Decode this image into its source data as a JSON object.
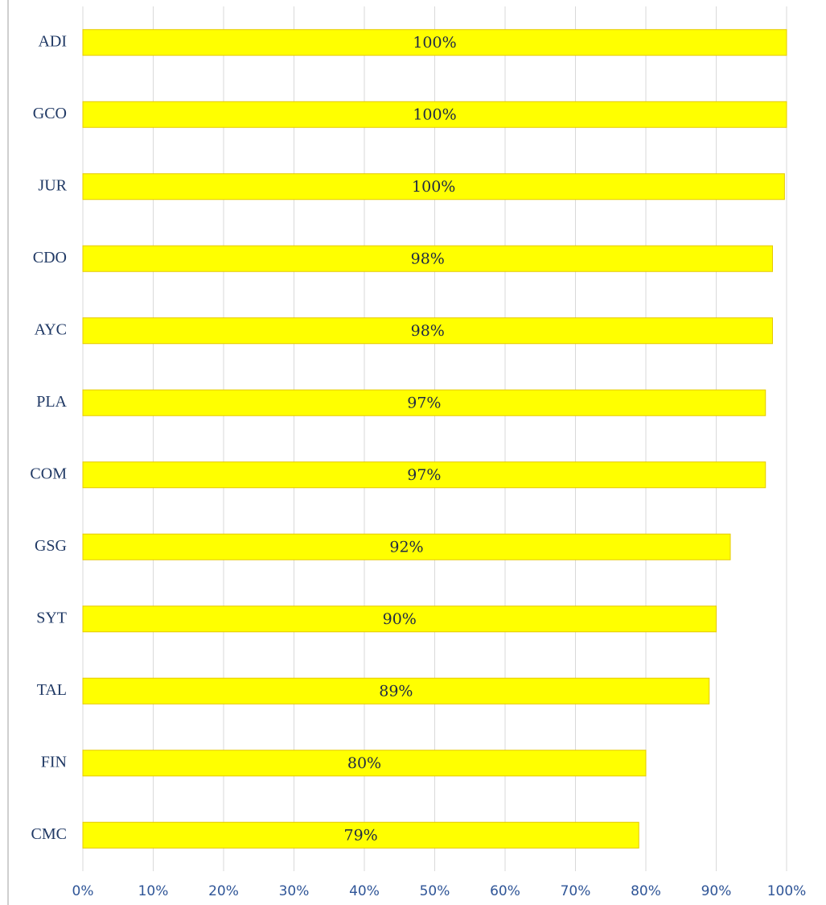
{
  "chart_data": {
    "type": "bar",
    "orientation": "horizontal",
    "categories": [
      "ADI",
      "GCO",
      "JUR",
      "CDO",
      "AYC",
      "PLA",
      "COM",
      "GSG",
      "SYT",
      "TAL",
      "FIN",
      "CMC"
    ],
    "values": [
      100,
      100,
      99.7,
      98,
      98,
      97,
      97,
      92,
      90,
      89,
      80,
      79
    ],
    "value_labels": [
      "100%",
      "100%",
      "100%",
      "98%",
      "98%",
      "97%",
      "97%",
      "92%",
      "90%",
      "89%",
      "80%",
      "79%"
    ],
    "color": "#ffff00",
    "xlim": [
      0,
      100
    ],
    "xticks": [
      {
        "value": 0,
        "label": "0%"
      },
      {
        "value": 10,
        "label": "10%"
      },
      {
        "value": 20,
        "label": "20%"
      },
      {
        "value": 30,
        "label": "30%"
      },
      {
        "value": 40,
        "label": "40%"
      },
      {
        "value": 50,
        "label": "50%"
      },
      {
        "value": 60,
        "label": "60%"
      },
      {
        "value": 70,
        "label": "70%"
      },
      {
        "value": 80,
        "label": "80%"
      },
      {
        "value": 90,
        "label": "90%"
      },
      {
        "value": 100,
        "label": "100%"
      }
    ],
    "grid": true
  }
}
